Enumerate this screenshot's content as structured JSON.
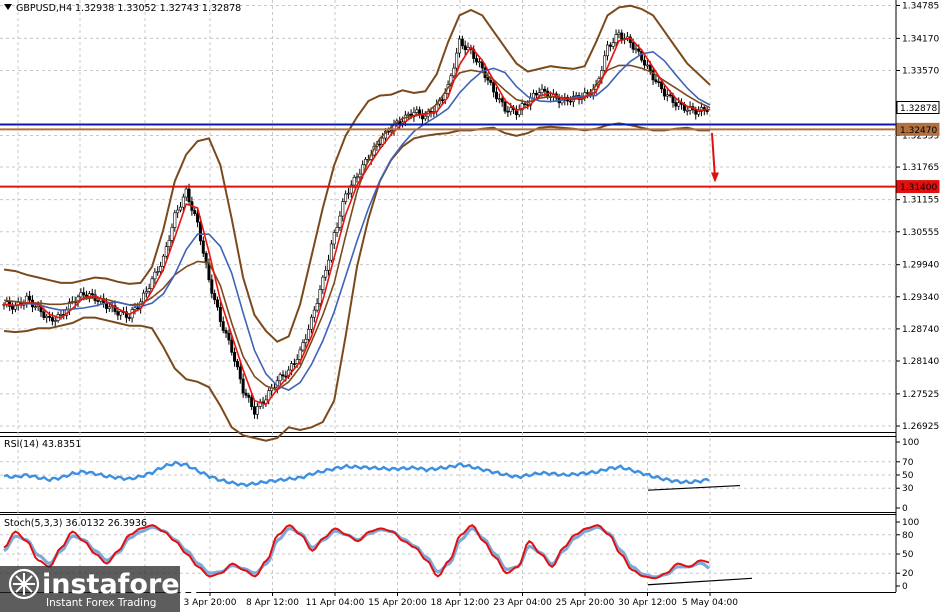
{
  "header": {
    "symbol": "GBPUSD,H4",
    "ohlc": "1.32938 1.33052 1.32743 1.32878",
    "rsi_label": "RSI(14) 43.8351",
    "stoch_label": "Stoch(5,3,3) 36.0132 26.3936"
  },
  "watermark": {
    "brand": "instaforex",
    "tagline": "Instant Forex Trading"
  },
  "colors": {
    "price_candles": "#000000",
    "ma_fast": "#e8140f",
    "ma_slow": "#3f63b8",
    "bollinger": "#7b4a1c",
    "resistance_line": "#0a1aa8",
    "support_line": "#b07040",
    "target_line": "#e01010",
    "rsi_line": "#3d8fe0",
    "stoch_main": "#e01010",
    "stoch_signal": "#7fa8d8"
  },
  "chart_data": [
    {
      "type": "line",
      "name": "main",
      "yaxis_ticks": [
        "1.34785",
        "1.34170",
        "1.33570",
        "1.32355",
        "1.31765",
        "1.31155",
        "1.30555",
        "1.29940",
        "1.29340",
        "1.28740",
        "1.28140",
        "1.27525",
        "1.26925"
      ],
      "ylim": [
        1.2685,
        1.3485
      ],
      "xaxis_ticks": [
        "3 Apr 20:00",
        "8 Apr 12:00",
        "11 Apr 04:00",
        "15 Apr 20:00",
        "18 Apr 12:00",
        "23 Apr 04:00",
        "25 Apr 20:00",
        "30 Apr 12:00",
        "5 May 04:00"
      ],
      "price_labels": [
        {
          "value": "1.32878",
          "numeric": 1.32878,
          "tag": "current-price"
        },
        {
          "value": "1.32470",
          "numeric": 1.3247,
          "tag": "support-level"
        },
        {
          "value": "1.31400",
          "numeric": 1.314,
          "tag": "target-level"
        }
      ],
      "horizontal_lines": [
        {
          "name": "resistance",
          "value": 1.3256
        },
        {
          "name": "support",
          "value": 1.3247
        },
        {
          "name": "target",
          "value": 1.314
        }
      ],
      "close_series": [
        1.292,
        1.2915,
        1.293,
        1.2912,
        1.289,
        1.2898,
        1.2925,
        1.294,
        1.2932,
        1.2918,
        1.2905,
        1.2898,
        1.2925,
        1.2965,
        1.3005,
        1.3085,
        1.313,
        1.307,
        1.2965,
        1.289,
        1.2835,
        1.276,
        1.272,
        1.2745,
        1.2778,
        1.2795,
        1.283,
        1.289,
        1.2965,
        1.305,
        1.3125,
        1.316,
        1.3195,
        1.3225,
        1.325,
        1.3265,
        1.328,
        1.327,
        1.329,
        1.3325,
        1.341,
        1.3392,
        1.336,
        1.3318,
        1.3285,
        1.328,
        1.3298,
        1.332,
        1.331,
        1.33,
        1.3305,
        1.331,
        1.3325,
        1.34,
        1.3425,
        1.341,
        1.338,
        1.3345,
        1.3315,
        1.3295,
        1.3285,
        1.328,
        1.3288
      ],
      "bollinger_upper": [
        1.2985,
        1.2982,
        1.2975,
        1.297,
        1.2965,
        1.296,
        1.296,
        1.2965,
        1.297,
        1.2968,
        1.2962,
        1.2958,
        1.296,
        1.299,
        1.306,
        1.315,
        1.32,
        1.3225,
        1.323,
        1.318,
        1.308,
        1.297,
        1.29,
        1.287,
        1.285,
        1.286,
        1.292,
        1.301,
        1.31,
        1.318,
        1.3235,
        1.327,
        1.33,
        1.331,
        1.3312,
        1.332,
        1.3315,
        1.3318,
        1.335,
        1.341,
        1.346,
        1.347,
        1.346,
        1.343,
        1.34,
        1.337,
        1.3355,
        1.336,
        1.3365,
        1.3362,
        1.336,
        1.3365,
        1.341,
        1.346,
        1.3475,
        1.3478,
        1.3472,
        1.346,
        1.343,
        1.34,
        1.337,
        1.335,
        1.333
      ],
      "bollinger_lower": [
        1.287,
        1.2868,
        1.287,
        1.2875,
        1.2875,
        1.288,
        1.2885,
        1.2895,
        1.2895,
        1.289,
        1.2885,
        1.288,
        1.288,
        1.2875,
        1.284,
        1.28,
        1.278,
        1.2775,
        1.2765,
        1.273,
        1.269,
        1.2675,
        1.267,
        1.2665,
        1.267,
        1.269,
        1.2685,
        1.269,
        1.27,
        1.274,
        1.286,
        1.299,
        1.308,
        1.315,
        1.319,
        1.3215,
        1.323,
        1.3235,
        1.3238,
        1.324,
        1.3245,
        1.3245,
        1.3248,
        1.325,
        1.324,
        1.3235,
        1.324,
        1.325,
        1.3252,
        1.325,
        1.3248,
        1.3245,
        1.3248,
        1.3255,
        1.3258,
        1.3255,
        1.325,
        1.3245,
        1.3245,
        1.3248,
        1.325,
        1.3245,
        1.3245
      ]
    },
    {
      "type": "line",
      "name": "RSI(14)",
      "ylim": [
        0,
        100
      ],
      "levels": [
        70,
        50,
        30
      ],
      "y_ticks": [
        "100",
        "70",
        "50",
        "30",
        "0"
      ],
      "values": [
        48,
        47,
        50,
        46,
        43,
        46,
        52,
        55,
        52,
        48,
        46,
        44,
        48,
        54,
        63,
        68,
        65,
        56,
        48,
        42,
        38,
        35,
        37,
        40,
        42,
        44,
        46,
        52,
        56,
        60,
        63,
        62,
        61,
        60,
        59,
        60,
        61,
        58,
        60,
        62,
        66,
        62,
        58,
        54,
        50,
        47,
        50,
        53,
        52,
        50,
        51,
        53,
        55,
        60,
        62,
        57,
        52,
        47,
        43,
        40,
        39,
        41,
        44
      ]
    },
    {
      "type": "line",
      "name": "Stoch(5,3,3)",
      "ylim": [
        0,
        100
      ],
      "levels": [
        80,
        50,
        20
      ],
      "y_ticks": [
        "100",
        "80",
        "50",
        "20",
        "0"
      ],
      "main_values": [
        60,
        85,
        70,
        40,
        30,
        60,
        85,
        70,
        50,
        35,
        55,
        80,
        90,
        95,
        85,
        70,
        50,
        30,
        15,
        20,
        35,
        25,
        15,
        40,
        80,
        95,
        80,
        55,
        75,
        90,
        80,
        70,
        85,
        90,
        85,
        70,
        60,
        40,
        15,
        40,
        80,
        95,
        70,
        45,
        20,
        30,
        70,
        50,
        30,
        60,
        80,
        90,
        95,
        80,
        50,
        25,
        15,
        12,
        20,
        35,
        30,
        40,
        36
      ],
      "signal_values": [
        55,
        78,
        72,
        48,
        35,
        55,
        78,
        72,
        55,
        40,
        52,
        75,
        85,
        92,
        86,
        72,
        55,
        35,
        20,
        22,
        32,
        27,
        20,
        35,
        72,
        90,
        82,
        60,
        72,
        86,
        80,
        72,
        82,
        88,
        85,
        73,
        62,
        45,
        22,
        35,
        72,
        90,
        74,
        50,
        26,
        30,
        62,
        52,
        34,
        55,
        75,
        86,
        92,
        82,
        56,
        30,
        18,
        14,
        18,
        30,
        30,
        36,
        26
      ]
    }
  ]
}
